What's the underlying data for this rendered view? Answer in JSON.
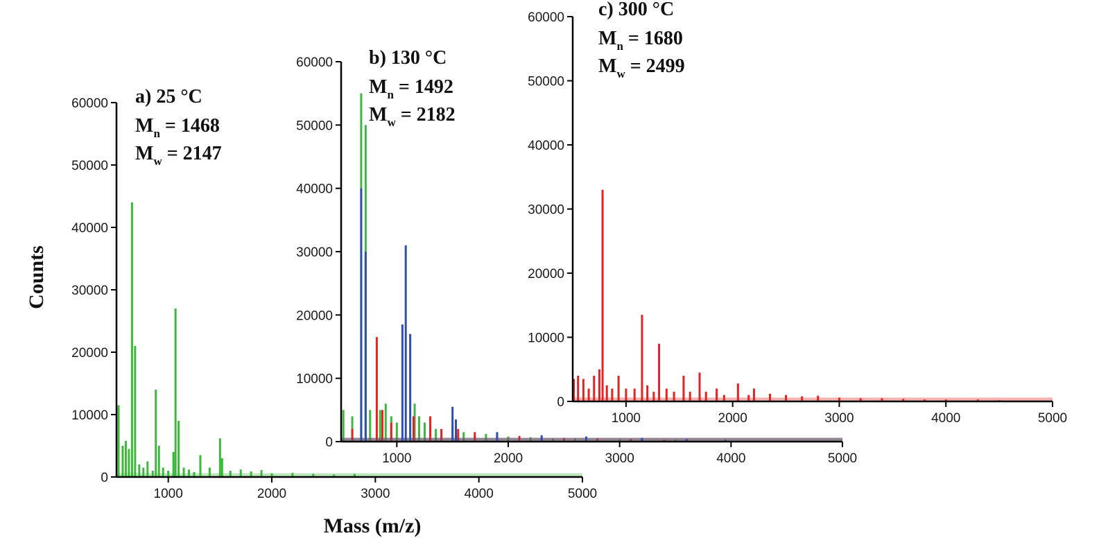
{
  "figure": {
    "ylabel": "Counts",
    "xlabel": "Mass (m/z)"
  },
  "chart_data": [
    {
      "type": "bar",
      "title": "a) 25 °C",
      "stats": [
        {
          "symbol": "M",
          "sub": "n",
          "value": "= 1468"
        },
        {
          "symbol": "M",
          "sub": "w",
          "value": "= 2147"
        }
      ],
      "xlim": [
        500,
        5000
      ],
      "ylim": [
        0,
        60000
      ],
      "x_ticks": [
        1000,
        2000,
        3000,
        4000,
        5000
      ],
      "y_ticks": [
        0,
        10000,
        20000,
        30000,
        40000,
        50000,
        60000
      ],
      "series": [
        {
          "color": "#3cb83c",
          "peaks": [
            [
              520,
              11500
            ],
            [
              560,
              5000
            ],
            [
              590,
              5800
            ],
            [
              620,
              4500
            ],
            [
              650,
              44000
            ],
            [
              680,
              21000
            ],
            [
              720,
              2000
            ],
            [
              760,
              1500
            ],
            [
              800,
              2500
            ],
            [
              850,
              1000
            ],
            [
              880,
              14000
            ],
            [
              910,
              5000
            ],
            [
              950,
              1500
            ],
            [
              1000,
              1000
            ],
            [
              1050,
              4000
            ],
            [
              1070,
              27000
            ],
            [
              1100,
              9000
            ],
            [
              1150,
              1500
            ],
            [
              1200,
              1200
            ],
            [
              1250,
              800
            ],
            [
              1310,
              3500
            ],
            [
              1400,
              1500
            ],
            [
              1500,
              6200
            ],
            [
              1520,
              3000
            ],
            [
              1600,
              1000
            ],
            [
              1700,
              1200
            ],
            [
              1800,
              900
            ],
            [
              1900,
              1100
            ],
            [
              2000,
              600
            ],
            [
              2200,
              700
            ],
            [
              2400,
              500
            ],
            [
              2600,
              400
            ],
            [
              2800,
              500
            ]
          ]
        }
      ]
    },
    {
      "type": "bar",
      "title": "b) 130 °C",
      "stats": [
        {
          "symbol": "M",
          "sub": "n",
          "value": "= 1492"
        },
        {
          "symbol": "M",
          "sub": "w",
          "value": "= 2182"
        }
      ],
      "xlim": [
        500,
        5000
      ],
      "ylim": [
        0,
        60000
      ],
      "x_ticks": [
        1000,
        2000,
        3000,
        4000,
        5000
      ],
      "y_ticks": [
        0,
        10000,
        20000,
        30000,
        40000,
        50000,
        60000
      ],
      "series": [
        {
          "color": "#3cb83c",
          "peaks": [
            [
              520,
              5000
            ],
            [
              600,
              4000
            ],
            [
              680,
              55000
            ],
            [
              720,
              50000
            ],
            [
              760,
              5000
            ],
            [
              850,
              5000
            ],
            [
              900,
              6000
            ],
            [
              950,
              4000
            ],
            [
              1000,
              3000
            ],
            [
              1160,
              6000
            ],
            [
              1200,
              4000
            ],
            [
              1250,
              3000
            ],
            [
              1350,
              2000
            ],
            [
              1500,
              2500
            ],
            [
              1600,
              1500
            ],
            [
              1700,
              1000
            ],
            [
              1800,
              1200
            ],
            [
              2000,
              800
            ],
            [
              2200,
              700
            ],
            [
              2400,
              500
            ],
            [
              2600,
              500
            ],
            [
              2800,
              400
            ],
            [
              3000,
              400
            ],
            [
              3500,
              300
            ]
          ]
        },
        {
          "color": "#e52222",
          "peaks": [
            [
              600,
              2000
            ],
            [
              820,
              16500
            ],
            [
              870,
              5000
            ],
            [
              950,
              3000
            ],
            [
              1150,
              4000
            ],
            [
              1300,
              4000
            ],
            [
              1400,
              2000
            ],
            [
              1550,
              2000
            ],
            [
              1700,
              1500
            ],
            [
              1900,
              1000
            ],
            [
              2100,
              900
            ],
            [
              2300,
              700
            ],
            [
              2500,
              600
            ],
            [
              2800,
              500
            ],
            [
              3100,
              400
            ],
            [
              3400,
              300
            ]
          ]
        },
        {
          "color": "#2d4fb0",
          "peaks": [
            [
              680,
              40000
            ],
            [
              720,
              30000
            ],
            [
              1050,
              18500
            ],
            [
              1080,
              31000
            ],
            [
              1120,
              17000
            ],
            [
              1500,
              5500
            ],
            [
              1530,
              3500
            ],
            [
              1900,
              1500
            ],
            [
              2300,
              1000
            ],
            [
              2700,
              800
            ],
            [
              3200,
              600
            ],
            [
              3600,
              400
            ],
            [
              3950,
              300
            ]
          ]
        }
      ]
    },
    {
      "type": "bar",
      "title": "c) 300 °C",
      "stats": [
        {
          "symbol": "M",
          "sub": "n",
          "value": "= 1680"
        },
        {
          "symbol": "M",
          "sub": "w",
          "value": "= 2499"
        }
      ],
      "xlim": [
        500,
        5000
      ],
      "ylim": [
        0,
        60000
      ],
      "x_ticks": [
        1000,
        2000,
        3000,
        4000,
        5000
      ],
      "y_ticks": [
        0,
        10000,
        20000,
        30000,
        40000,
        50000,
        60000
      ],
      "series": [
        {
          "color": "#e52222",
          "peaks": [
            [
              510,
              3500
            ],
            [
              550,
              4000
            ],
            [
              600,
              3500
            ],
            [
              650,
              2000
            ],
            [
              700,
              4000
            ],
            [
              750,
              5000
            ],
            [
              780,
              33000
            ],
            [
              820,
              2500
            ],
            [
              870,
              2000
            ],
            [
              930,
              4000
            ],
            [
              1000,
              2000
            ],
            [
              1080,
              2000
            ],
            [
              1150,
              13500
            ],
            [
              1200,
              2500
            ],
            [
              1260,
              1500
            ],
            [
              1310,
              9000
            ],
            [
              1380,
              2000
            ],
            [
              1450,
              1500
            ],
            [
              1540,
              4000
            ],
            [
              1600,
              1500
            ],
            [
              1690,
              4500
            ],
            [
              1750,
              1500
            ],
            [
              1850,
              2000
            ],
            [
              1920,
              1000
            ],
            [
              2050,
              2800
            ],
            [
              2150,
              1000
            ],
            [
              2200,
              2000
            ],
            [
              2350,
              1200
            ],
            [
              2500,
              1000
            ],
            [
              2650,
              800
            ],
            [
              2800,
              900
            ],
            [
              3000,
              600
            ],
            [
              3200,
              500
            ],
            [
              3400,
              500
            ],
            [
              3600,
              400
            ],
            [
              3800,
              300
            ],
            [
              4000,
              300
            ],
            [
              4300,
              300
            ],
            [
              4500,
              200
            ]
          ]
        }
      ]
    }
  ]
}
